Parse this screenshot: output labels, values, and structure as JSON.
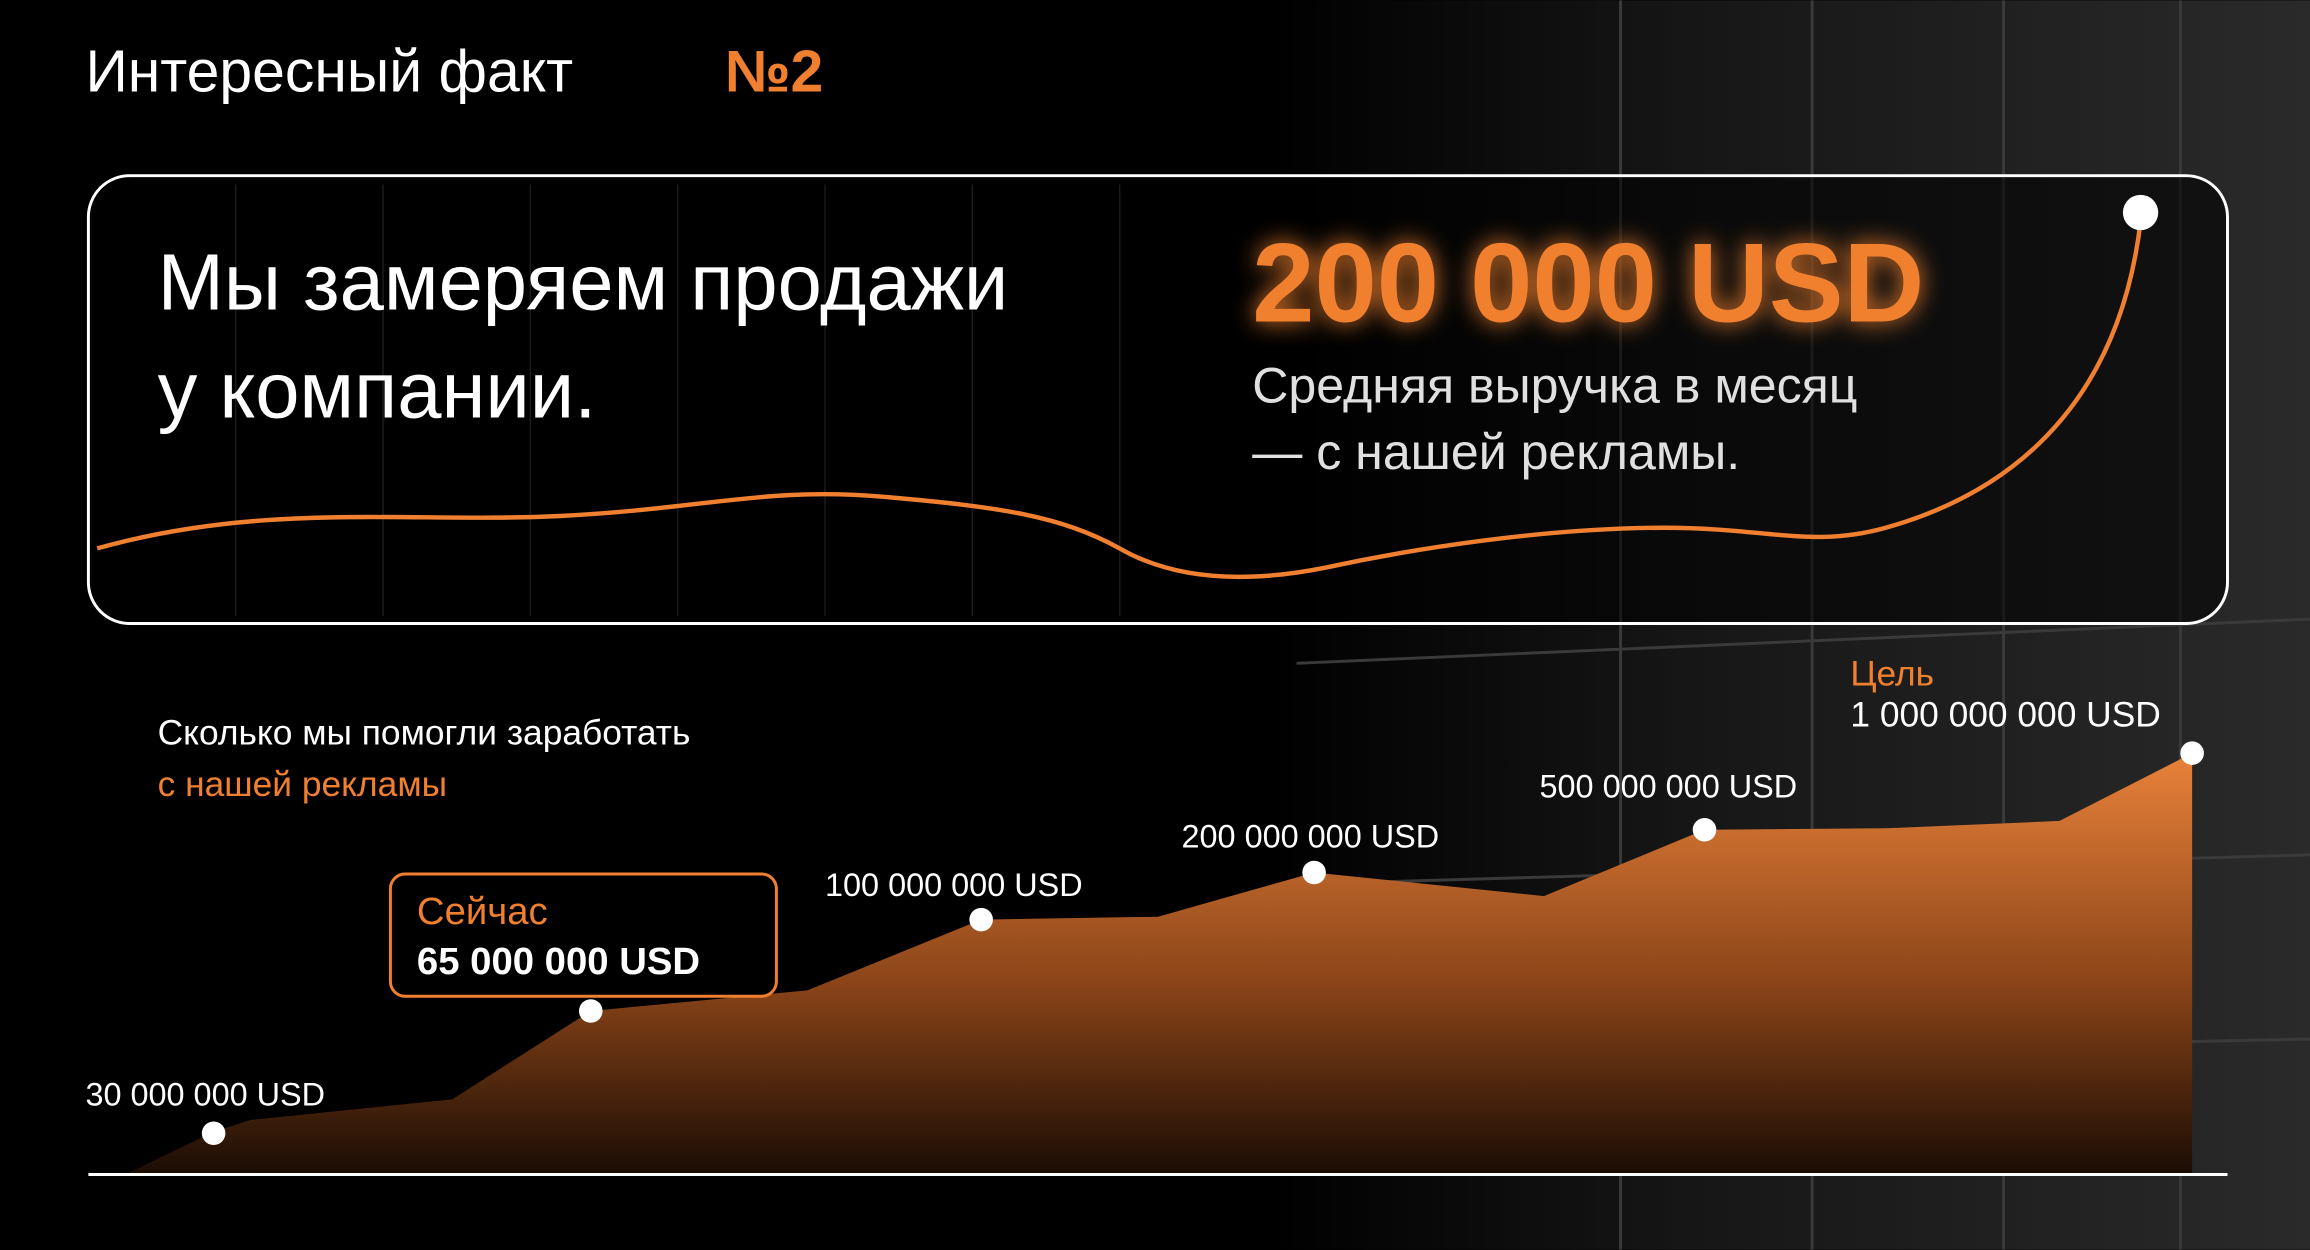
{
  "header": {
    "title": "Интересный факт",
    "number": "№2"
  },
  "fact": {
    "heading_lines": [
      "Мы замеряем продажи",
      "у компании."
    ],
    "value": "200 000 USD",
    "caption_lines": [
      "Средняя выручка в месяц",
      "— с нашей рекламы."
    ]
  },
  "progress": {
    "title": "Сколько мы помогли заработать",
    "subtitle": "с нашей рекламы",
    "milestones": [
      {
        "label": "30 000 000 USD"
      },
      {
        "tag": "Сейчас",
        "label": "65 000 000 USD"
      },
      {
        "label": "100 000 000 USD"
      },
      {
        "label": "200 000 000 USD"
      },
      {
        "label": "500 000 000 USD"
      },
      {
        "tag": "Цель",
        "label": "1 000 000 000 USD"
      }
    ]
  }
}
